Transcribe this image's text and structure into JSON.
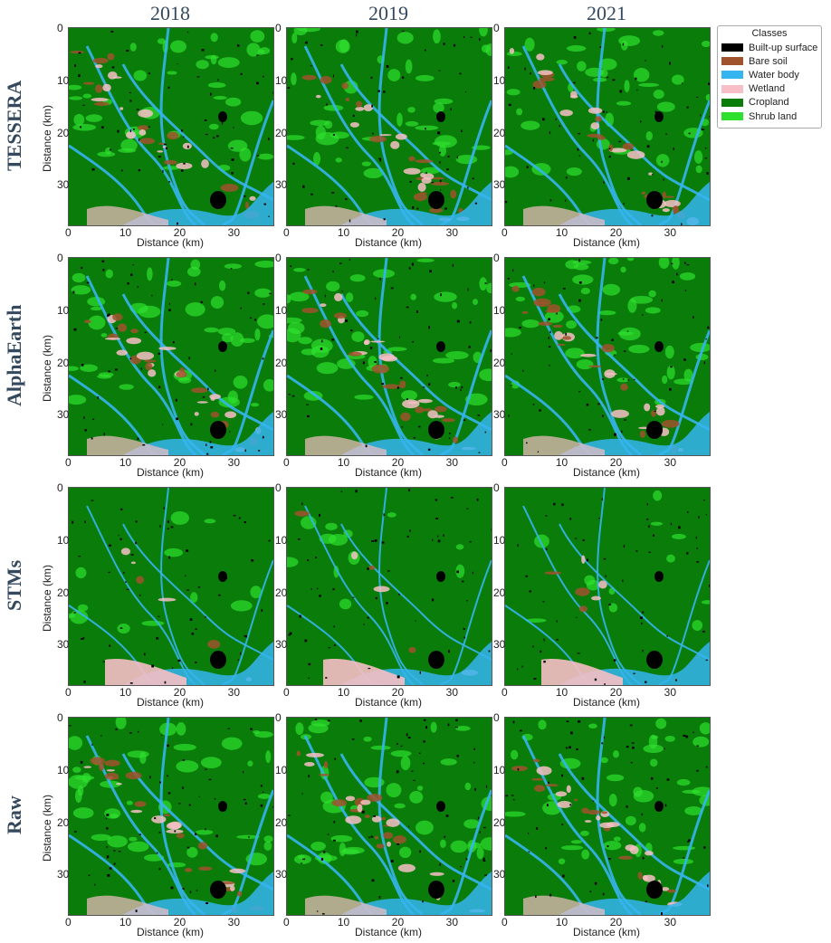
{
  "years": [
    "2018",
    "2019",
    "2021"
  ],
  "methods": [
    "TESSERA",
    "AlphaEarth",
    "STMs",
    "Raw"
  ],
  "axis": {
    "xlabel": "Distance (km)",
    "ylabel": "Distance (km)",
    "xticks": [
      "0",
      "10",
      "20",
      "30"
    ],
    "yticks": [
      "0",
      "10",
      "20",
      "30"
    ]
  },
  "legend": {
    "title": "Classes",
    "items": [
      {
        "label": "Built-up surface",
        "color": "#000000"
      },
      {
        "label": "Bare soil",
        "color": "#a0522d"
      },
      {
        "label": "Water body",
        "color": "#35b5f0"
      },
      {
        "label": "Wetland",
        "color": "#f7bfc5"
      },
      {
        "label": "Cropland",
        "color": "#0a7c0a"
      },
      {
        "label": "Shrub land",
        "color": "#2ee02e"
      }
    ]
  }
}
